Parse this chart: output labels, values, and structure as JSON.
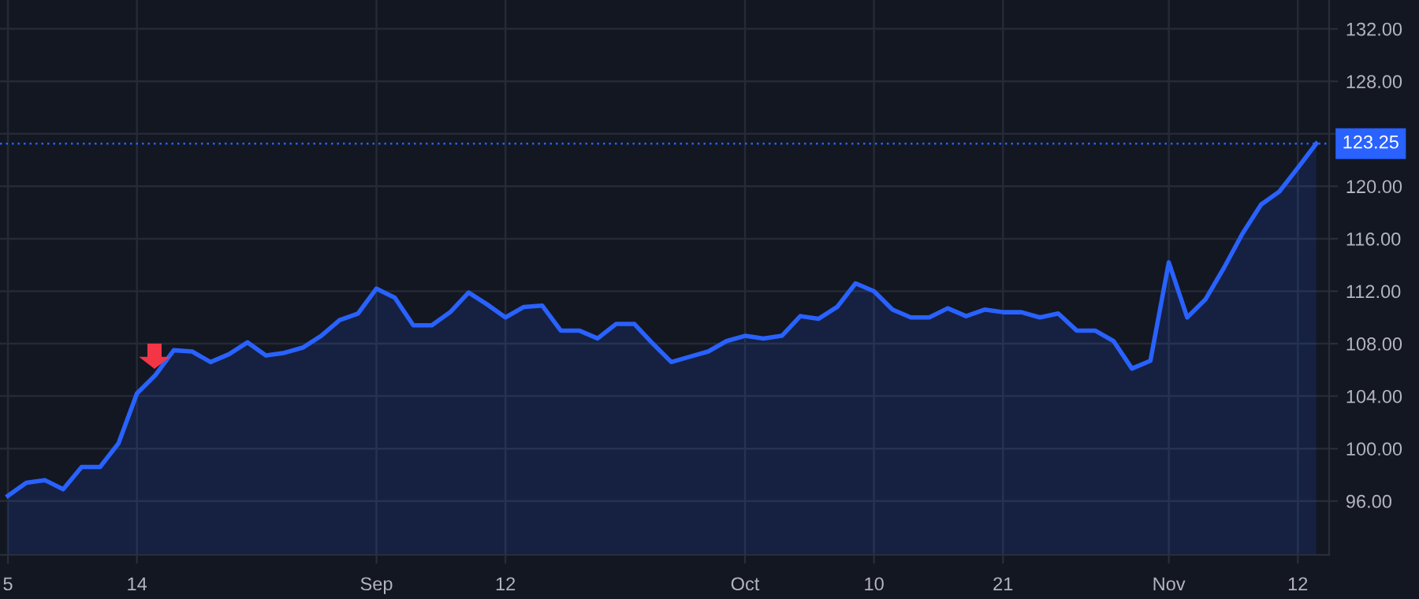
{
  "chart_data": {
    "type": "area",
    "categories": [
      "5",
      null,
      null,
      null,
      null,
      null,
      null,
      "14",
      null,
      null,
      null,
      null,
      null,
      null,
      null,
      null,
      null,
      null,
      null,
      null,
      "Sep",
      null,
      null,
      null,
      null,
      null,
      null,
      "12",
      null,
      null,
      null,
      null,
      null,
      null,
      null,
      null,
      null,
      null,
      null,
      null,
      "Oct",
      null,
      null,
      null,
      null,
      null,
      null,
      "10",
      null,
      null,
      null,
      null,
      null,
      null,
      "21",
      null,
      null,
      null,
      null,
      null,
      null,
      null,
      null,
      "Nov",
      null,
      null,
      null,
      null,
      null,
      null,
      "12",
      null
    ],
    "series": [
      {
        "color": "#2962ff",
        "values": [
          96.4,
          97.4,
          97.6,
          96.9,
          98.6,
          98.6,
          100.4,
          104.2,
          105.6,
          107.5,
          107.4,
          106.6,
          107.2,
          108.1,
          107.1,
          107.3,
          107.7,
          108.6,
          109.8,
          110.3,
          112.2,
          111.5,
          109.4,
          109.4,
          110.4,
          111.9,
          111.0,
          110.0,
          110.8,
          110.9,
          109.0,
          109.0,
          108.4,
          109.5,
          109.5,
          108.0,
          106.6,
          107.0,
          107.4,
          108.2,
          108.6,
          108.4,
          108.6,
          110.1,
          109.9,
          110.8,
          112.6,
          112.0,
          110.6,
          110.0,
          110.0,
          110.7,
          110.1,
          110.6,
          110.4,
          110.4,
          110.0,
          110.3,
          109.0,
          109.0,
          108.2,
          106.1,
          106.7,
          114.2,
          110.0,
          111.4,
          113.8,
          116.4,
          118.6,
          119.6,
          121.4,
          123.25
        ]
      }
    ],
    "ylim": [
      91.9,
      134.2
    ],
    "yticks": [
      {
        "value": 96,
        "label": "96.00"
      },
      {
        "value": 100,
        "label": "100.00"
      },
      {
        "value": 104,
        "label": "104.00"
      },
      {
        "value": 108,
        "label": "108.00"
      },
      {
        "value": 112,
        "label": "112.00"
      },
      {
        "value": 116,
        "label": "116.00"
      },
      {
        "value": 120,
        "label": "120.00"
      },
      {
        "value": 124,
        "label": null
      },
      {
        "value": 128,
        "label": "128.00"
      },
      {
        "value": 132,
        "label": "132.00"
      }
    ],
    "ref_lines": [
      {
        "axis": "y",
        "value": 123.25,
        "label": "123.25",
        "color": "#2962ff",
        "line_style": "dotted"
      }
    ],
    "grid": true,
    "legend": false
  }
}
